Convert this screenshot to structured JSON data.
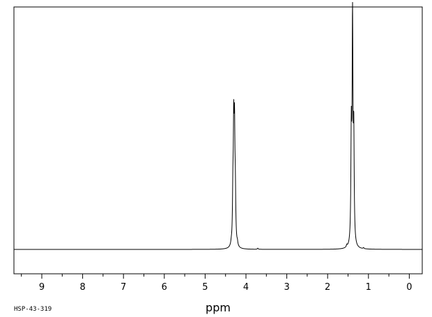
{
  "chart_data": {
    "type": "line",
    "title": "",
    "xlabel": "ppm",
    "ylabel": "",
    "xlim": [
      9.5,
      -0.3
    ],
    "x_reversed": true,
    "x_ticks": [
      9,
      8,
      7,
      6,
      5,
      4,
      3,
      2,
      1,
      0
    ],
    "x_tick_labels": [
      "9",
      "8",
      "7",
      "6",
      "5",
      "4",
      "3",
      "2",
      "1",
      "0"
    ],
    "grid": false,
    "legend": "none",
    "series": [
      {
        "peaks": [
          {
            "ppm": 4.36,
            "intensity": 0.02
          },
          {
            "ppm": 4.32,
            "intensity": 0.41
          },
          {
            "ppm": 4.3,
            "intensity": 0.99
          },
          {
            "ppm": 4.28,
            "intensity": 0.95
          },
          {
            "ppm": 4.26,
            "intensity": 0.4
          },
          {
            "ppm": 4.21,
            "intensity": 0.03
          },
          {
            "ppm": 3.71,
            "intensity": 0.01
          },
          {
            "ppm": 1.42,
            "intensity": 1.0
          },
          {
            "ppm": 1.39,
            "intensity": 2.03
          },
          {
            "ppm": 1.36,
            "intensity": 0.97
          },
          {
            "ppm": 1.53,
            "intensity": 0.02
          },
          {
            "ppm": 1.12,
            "intensity": 0.01
          }
        ]
      }
    ]
  },
  "footer": {
    "sample_id": "HSP-43-319"
  },
  "colors": {
    "trace": "#000000",
    "frame": "#000000",
    "background": "#ffffff"
  }
}
